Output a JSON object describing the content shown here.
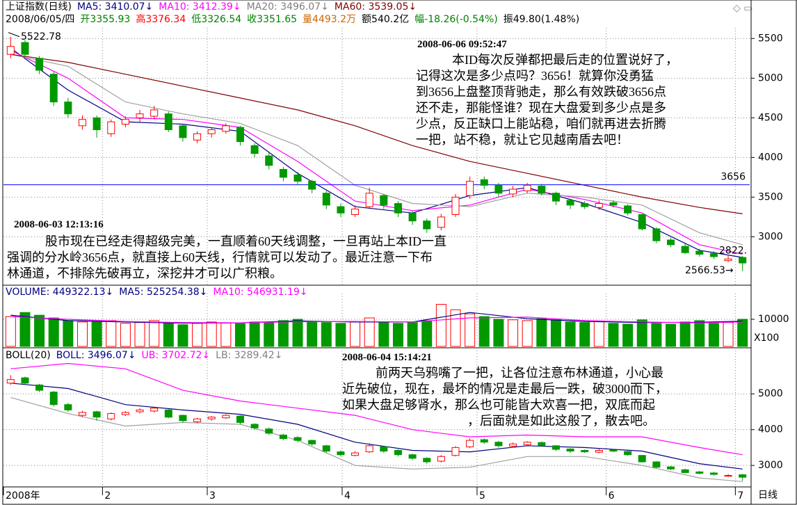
{
  "header": {
    "lines": [
      [
        {
          "text": "上证指数(日线)",
          "color": "#000000"
        },
        {
          "text": "MA5: 3410.07↓",
          "color": "#000080"
        },
        {
          "text": "MA10: 3412.39↓",
          "color": "#ff00ff"
        },
        {
          "text": "MA20: 3496.07↓",
          "color": "#808080"
        },
        {
          "text": "MA60: 3539.05↓",
          "color": "#800000"
        }
      ],
      [
        {
          "text": "2008/06/05/四",
          "color": "#000000"
        },
        {
          "text": "开3355.93",
          "color": "#008000"
        },
        {
          "text": "高3376.34",
          "color": "#ff0000"
        },
        {
          "text": "低3326.54",
          "color": "#008000"
        },
        {
          "text": "收3351.65",
          "color": "#008000"
        },
        {
          "text": "量4493.2万",
          "color": "#cc6600"
        },
        {
          "text": "额540.2亿",
          "color": "#000000"
        },
        {
          "text": "幅-18.26(-0.54%)",
          "color": "#008000"
        },
        {
          "text": "振49.80(1.48%)",
          "color": "#000000"
        }
      ]
    ]
  },
  "footer": {
    "period": "日线"
  },
  "chart_data": [
    {
      "type": "candlestick",
      "up_color": "#ff0000",
      "down_color": "#009900",
      "grid": true,
      "xlim": [
        0,
        52
      ],
      "ylim": [
        2390,
        5810
      ],
      "yticks": [
        3000,
        3500,
        4000,
        4500,
        5000,
        5500
      ],
      "open": [
        5300,
        5450,
        5250,
        5050,
        4700,
        4400,
        4500,
        4300,
        4420,
        4500,
        4520,
        4550,
        4400,
        4220,
        4300,
        4330,
        4380,
        4150,
        4020,
        3850,
        3780,
        3700,
        3550,
        3380,
        3280,
        3380,
        3520,
        3420,
        3300,
        3200,
        3120,
        3280,
        3520,
        3720,
        3650,
        3540,
        3580,
        3640,
        3550,
        3460,
        3420,
        3370,
        3430,
        3390,
        3280,
        3100,
        2960,
        2880,
        2820,
        2790,
        2700,
        2740
      ],
      "high": [
        5522.78,
        5480,
        5280,
        5080,
        4750,
        4530,
        4530,
        4480,
        4520,
        4600,
        4650,
        4580,
        4420,
        4330,
        4380,
        4430,
        4400,
        4180,
        4060,
        3880,
        3820,
        3720,
        3580,
        3420,
        3400,
        3620,
        3540,
        3450,
        3330,
        3230,
        3290,
        3540,
        3760,
        3760,
        3680,
        3640,
        3680,
        3670,
        3570,
        3480,
        3450,
        3460,
        3460,
        3410,
        3290,
        3120,
        2990,
        2910,
        2850,
        2820,
        2760,
        2760
      ],
      "low": [
        5250,
        5260,
        5050,
        4650,
        4500,
        4350,
        4250,
        4260,
        4380,
        4450,
        4480,
        4320,
        4200,
        4180,
        4250,
        4300,
        4150,
        4000,
        3850,
        3700,
        3650,
        3550,
        3350,
        3250,
        3250,
        3350,
        3350,
        3250,
        3150,
        3050,
        3080,
        3250,
        3480,
        3600,
        3500,
        3500,
        3550,
        3520,
        3400,
        3350,
        3350,
        3340,
        3370,
        3270,
        3080,
        2920,
        2870,
        2780,
        2750,
        2720,
        2680,
        2566.53
      ],
      "close": [
        5400,
        5300,
        5100,
        4700,
        4550,
        4480,
        4350,
        4450,
        4480,
        4550,
        4600,
        4350,
        4250,
        4300,
        4350,
        4400,
        4200,
        4050,
        3900,
        3750,
        3700,
        3600,
        3400,
        3300,
        3350,
        3550,
        3400,
        3300,
        3200,
        3100,
        3250,
        3500,
        3700,
        3650,
        3550,
        3600,
        3650,
        3550,
        3450,
        3400,
        3380,
        3420,
        3400,
        3300,
        3100,
        2950,
        2900,
        2800,
        2780,
        2750,
        2720,
        2670
      ],
      "series": [
        {
          "name": "MA5",
          "color": "#000080",
          "x": [
            0,
            4,
            8,
            12,
            16,
            20,
            24,
            28,
            32,
            36,
            40,
            44,
            48,
            51
          ],
          "values": [
            5380,
            4850,
            4450,
            4420,
            4330,
            3800,
            3380,
            3300,
            3520,
            3620,
            3420,
            3180,
            2830,
            2740
          ]
        },
        {
          "name": "MA10",
          "color": "#ff00ff",
          "x": [
            0,
            4,
            8,
            12,
            16,
            20,
            24,
            28,
            32,
            36,
            40,
            44,
            48,
            51
          ],
          "values": [
            5350,
            5000,
            4500,
            4480,
            4380,
            3950,
            3450,
            3330,
            3400,
            3600,
            3470,
            3300,
            2900,
            2780
          ]
        },
        {
          "name": "MA20",
          "color": "#a0a0a0",
          "x": [
            0,
            4,
            8,
            12,
            16,
            20,
            24,
            28,
            32,
            36,
            40,
            44,
            48,
            51
          ],
          "values": [
            5300,
            5150,
            4700,
            4550,
            4430,
            4150,
            3650,
            3420,
            3380,
            3550,
            3500,
            3400,
            3050,
            2900
          ]
        },
        {
          "name": "MA60",
          "color": "#800000",
          "x": [
            0,
            4,
            8,
            12,
            16,
            20,
            24,
            28,
            32,
            36,
            40,
            44,
            48,
            51
          ],
          "values": [
            5300,
            5200,
            5050,
            4900,
            4750,
            4600,
            4400,
            4150,
            3950,
            3800,
            3650,
            3500,
            3370,
            3290
          ]
        }
      ],
      "ref_line": {
        "value": 3656,
        "color": "#0000ff"
      },
      "max_label": 5522.78,
      "right_label": {
        "value": 2822,
        "label": "2822."
      },
      "min_label": {
        "value": 2566.53,
        "label": "2566.53→"
      },
      "annotations": [
        {
          "title": "2008-06-06 09:52:47",
          "lines": [
            "本ID每次反弹都把最后走的位置说好了，",
            "记得这次是多少点吗？3656！就算你没勇猛",
            "到3656上盘整顶背驰走，那么有效跌破3656点",
            "还不走，那能怪谁？现在大盘爱到多少点是多",
            "少点，反正缺口上能站稳，咱们就再进去折腾",
            "一把，站不稳，就让它见越南盾去吧！"
          ]
        },
        {
          "title": "2008-06-03 12:13:16",
          "lines": [
            "股市现在已经走得超级完美，一直顺着60天线调整，一旦再站上本ID一直",
            "强调的分水岭3656点，就直接上60天线，行情就可以发动了。最近注意一下布",
            "林通道，不排除先破再立，深挖井才可以广积粮。"
          ]
        }
      ]
    },
    {
      "type": "bar",
      "grid": true,
      "xlim": [
        0,
        52
      ],
      "ylim": [
        0,
        18200
      ],
      "yticks": [
        10000
      ],
      "unit_label": "X100",
      "header": [
        {
          "text": "VOLUME: 449322.13↓",
          "color": "#000080"
        },
        {
          "text": "MA5: 525254.38↓",
          "color": "#000080"
        },
        {
          "text": "MA10: 546931.19↓",
          "color": "#ff00ff"
        }
      ],
      "values": [
        11000,
        12500,
        11500,
        10500,
        9500,
        9000,
        9000,
        9500,
        8500,
        8800,
        9500,
        8800,
        8000,
        8500,
        9000,
        8600,
        8400,
        9000,
        8800,
        9500,
        10000,
        9200,
        8800,
        8500,
        9000,
        10500,
        9000,
        8500,
        8800,
        9500,
        15500,
        13500,
        12000,
        11000,
        10000,
        9800,
        9500,
        10200,
        9800,
        9000,
        8800,
        9200,
        8500,
        8200,
        9800,
        8500,
        8200,
        9000,
        9500,
        8500,
        8800,
        10000
      ],
      "series": [
        {
          "name": "MA5",
          "color": "#000080",
          "x": [
            0,
            4,
            8,
            12,
            16,
            20,
            24,
            28,
            32,
            36,
            40,
            44,
            48,
            51
          ],
          "values": [
            11500,
            9500,
            9000,
            8600,
            8700,
            9400,
            9000,
            9000,
            12500,
            10200,
            9200,
            8800,
            8900,
            9300
          ]
        },
        {
          "name": "MA10",
          "color": "#ff00ff",
          "x": [
            0,
            4,
            8,
            12,
            16,
            20,
            24,
            28,
            32,
            36,
            40,
            44,
            48,
            51
          ],
          "values": [
            11000,
            10000,
            9200,
            8800,
            8700,
            9100,
            9200,
            9000,
            10500,
            10800,
            9500,
            9000,
            8700,
            9000
          ]
        }
      ]
    },
    {
      "type": "boll",
      "grid": true,
      "xlim": [
        0,
        52
      ],
      "ylim": [
        2400,
        6190
      ],
      "yticks": [
        3000,
        4000,
        5000
      ],
      "header": [
        {
          "text": "BOLL(20)",
          "color": "#000000"
        },
        {
          "text": "BOLL: 3496.07↓",
          "color": "#000080"
        },
        {
          "text": "UB: 3702.72↓",
          "color": "#ff00ff"
        },
        {
          "text": "LB: 3289.42↓",
          "color": "#808080"
        }
      ],
      "xticks": [
        {
          "value": 0,
          "label": "2008年"
        },
        {
          "value": 6.9,
          "label": "2"
        },
        {
          "value": 14.2,
          "label": "3"
        },
        {
          "value": 23.6,
          "label": "4"
        },
        {
          "value": 33,
          "label": "5"
        },
        {
          "value": 42,
          "label": "6"
        },
        {
          "value": 51,
          "label": "7"
        }
      ],
      "series": [
        {
          "name": "BOLL",
          "color": "#000080",
          "x": [
            0,
            4,
            8,
            12,
            16,
            20,
            24,
            28,
            32,
            36,
            40,
            44,
            48,
            51
          ],
          "values": [
            5300,
            5150,
            4700,
            4550,
            4430,
            4150,
            3650,
            3420,
            3380,
            3550,
            3500,
            3400,
            3050,
            2900
          ]
        },
        {
          "name": "UB",
          "color": "#ff00ff",
          "x": [
            0,
            4,
            8,
            12,
            16,
            20,
            24,
            28,
            32,
            36,
            40,
            44,
            48,
            51
          ],
          "values": [
            5700,
            5850,
            5700,
            5100,
            4800,
            4600,
            4400,
            4000,
            3800,
            3850,
            3800,
            3800,
            3500,
            3300
          ]
        },
        {
          "name": "LB",
          "color": "#a0a0a0",
          "x": [
            0,
            4,
            8,
            12,
            16,
            20,
            24,
            28,
            32,
            36,
            40,
            44,
            48,
            51
          ],
          "values": [
            4900,
            4450,
            4100,
            4200,
            4150,
            3700,
            3000,
            2900,
            2950,
            3250,
            3250,
            3000,
            2650,
            2550
          ]
        }
      ],
      "annotations": [
        {
          "title": "2008-06-04 15:14:21",
          "lines": [
            "前两天乌鸦嘴了一把，让各位注意布林通道，小心最",
            "近先破位，现在，最坏的情况是走最后一跌，破3000而下，",
            "如果大盘足够肾水，那么也可能皆大欢喜一把，双底而起",
            "，后面就是如此这般了，散去吧。"
          ]
        }
      ]
    }
  ]
}
